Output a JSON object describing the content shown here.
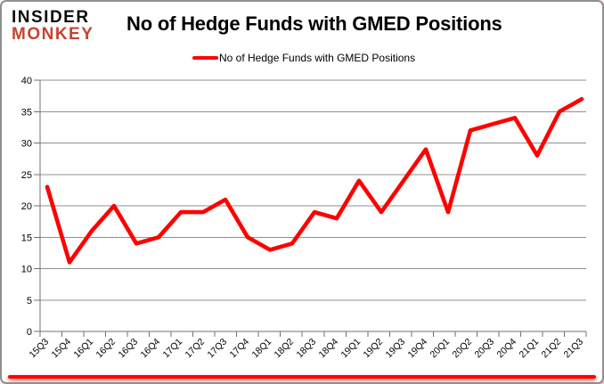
{
  "logo": {
    "line1": "INSIDER",
    "line2": "MONKEY"
  },
  "header": {
    "title": "No of Hedge Funds with GMED Positions"
  },
  "legend": {
    "label": "No of Hedge Funds with GMED Positions",
    "color": "#ff0000"
  },
  "colors": {
    "line_red": "#ff0000",
    "logo_red": "#c8432f",
    "grid_gray": "#909090",
    "axis_gray": "#707070",
    "text_black": "#000000"
  },
  "chart_data": {
    "type": "line",
    "title": "No of Hedge Funds with GMED Positions",
    "series_name": "No of Hedge Funds with GMED Positions",
    "categories": [
      "15Q3",
      "15Q4",
      "16Q1",
      "16Q2",
      "16Q3",
      "16Q4",
      "17Q1",
      "17Q2",
      "17Q3",
      "17Q4",
      "18Q1",
      "18Q2",
      "18Q3",
      "18Q4",
      "19Q1",
      "19Q2",
      "19Q3",
      "19Q4",
      "20Q1",
      "20Q2",
      "20Q3",
      "20Q4",
      "21Q1",
      "21Q2",
      "21Q3"
    ],
    "values": [
      23,
      11,
      16,
      20,
      14,
      15,
      19,
      19,
      21,
      15,
      13,
      14,
      19,
      18,
      24,
      19,
      24,
      29,
      19,
      32,
      33,
      34,
      28,
      35,
      37
    ],
    "ylim": [
      0,
      40
    ],
    "ytick_step": 5,
    "ytick_labels": [
      "0",
      "5",
      "10",
      "15",
      "20",
      "25",
      "30",
      "35",
      "40"
    ],
    "grid": true,
    "legend_position": "top",
    "line_color": "#ff0000"
  }
}
